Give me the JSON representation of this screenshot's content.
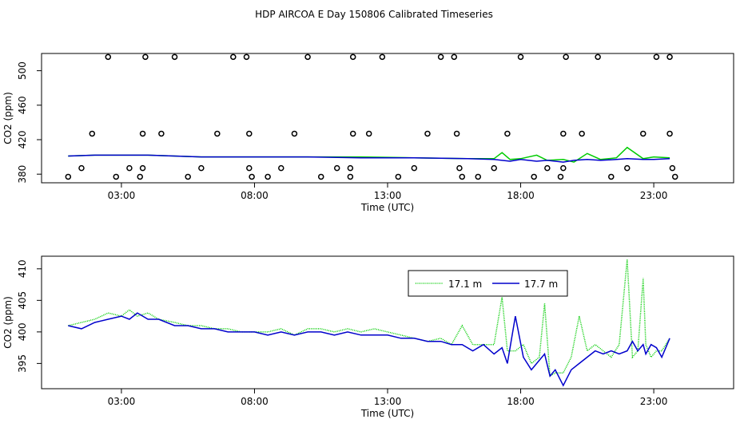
{
  "title": "HDP AIRCOA E  Day 150806  Calibrated Timeseries",
  "colors": {
    "green": "#00cc00",
    "blue": "#0000cc",
    "black": "#000000"
  },
  "chart_data": [
    {
      "type": "scatter",
      "title": "",
      "xlabel": "Time (UTC)",
      "ylabel": "CO2 (ppm)",
      "xlim": [
        0,
        26
      ],
      "ylim": [
        370,
        520
      ],
      "x_ticks": [
        3,
        8,
        13,
        18,
        23
      ],
      "x_tick_labels": [
        "03:00",
        "08:00",
        "13:00",
        "18:00",
        "23:00"
      ],
      "y_ticks": [
        380,
        420,
        460,
        500
      ],
      "y_tick_labels": [
        "380",
        "420",
        "460",
        "500"
      ],
      "calibration_points": [
        [
          1.0,
          377
        ],
        [
          1.9,
          427
        ],
        [
          1.5,
          387
        ],
        [
          2.5,
          516
        ],
        [
          2.8,
          377
        ],
        [
          3.3,
          387
        ],
        [
          3.7,
          377
        ],
        [
          3.8,
          387
        ],
        [
          3.8,
          427
        ],
        [
          3.9,
          516
        ],
        [
          4.5,
          427
        ],
        [
          5.0,
          516
        ],
        [
          5.5,
          377
        ],
        [
          6.0,
          387
        ],
        [
          6.6,
          427
        ],
        [
          7.2,
          516
        ],
        [
          7.7,
          516
        ],
        [
          7.8,
          427
        ],
        [
          7.8,
          387
        ],
        [
          7.9,
          377
        ],
        [
          8.5,
          377
        ],
        [
          9.0,
          387
        ],
        [
          9.5,
          427
        ],
        [
          10.0,
          516
        ],
        [
          10.5,
          377
        ],
        [
          11.1,
          387
        ],
        [
          11.6,
          387
        ],
        [
          11.6,
          377
        ],
        [
          11.7,
          427
        ],
        [
          11.7,
          516
        ],
        [
          12.3,
          427
        ],
        [
          12.8,
          516
        ],
        [
          13.4,
          377
        ],
        [
          14.0,
          387
        ],
        [
          14.5,
          427
        ],
        [
          15.0,
          516
        ],
        [
          15.5,
          516
        ],
        [
          15.6,
          427
        ],
        [
          15.7,
          387
        ],
        [
          15.8,
          377
        ],
        [
          16.4,
          377
        ],
        [
          17.0,
          387
        ],
        [
          17.5,
          427
        ],
        [
          18.0,
          516
        ],
        [
          18.5,
          377
        ],
        [
          19.0,
          387
        ],
        [
          19.5,
          377
        ],
        [
          19.6,
          387
        ],
        [
          19.6,
          427
        ],
        [
          19.7,
          516
        ],
        [
          20.3,
          427
        ],
        [
          20.9,
          516
        ],
        [
          21.4,
          377
        ],
        [
          22.0,
          387
        ],
        [
          22.6,
          427
        ],
        [
          23.1,
          516
        ],
        [
          23.6,
          516
        ],
        [
          23.6,
          427
        ],
        [
          23.7,
          387
        ],
        [
          23.8,
          377
        ]
      ],
      "series": [
        {
          "name": "17.1 m",
          "color": "#00cc00",
          "x": [
            1.0,
            2.0,
            3.0,
            4.0,
            5.0,
            6.0,
            8.0,
            10.0,
            12.0,
            14.0,
            16.0,
            17.0,
            17.3,
            17.6,
            18.0,
            18.6,
            19.0,
            19.6,
            20.0,
            20.5,
            21.0,
            21.6,
            22.0,
            22.6,
            23.0,
            23.6
          ],
          "y": [
            401,
            402,
            402,
            402,
            401,
            400,
            400,
            400,
            400,
            399,
            398,
            398,
            405,
            397,
            398,
            402,
            396,
            397,
            394,
            404,
            397,
            399,
            411,
            398,
            400,
            399
          ]
        },
        {
          "name": "17.7 m",
          "color": "#0000cc",
          "x": [
            1.0,
            2.0,
            3.0,
            4.0,
            5.0,
            6.0,
            8.0,
            10.0,
            12.0,
            14.0,
            16.0,
            17.0,
            17.6,
            18.0,
            18.6,
            19.0,
            19.6,
            20.0,
            20.5,
            21.0,
            21.6,
            22.0,
            22.6,
            23.0,
            23.6
          ],
          "y": [
            401,
            402,
            402,
            402,
            401,
            400,
            400,
            400,
            399,
            399,
            398,
            397,
            395,
            397,
            395,
            396,
            394,
            396,
            397,
            396,
            397,
            398,
            397,
            397,
            398
          ]
        }
      ]
    },
    {
      "type": "line",
      "title": "",
      "xlabel": "Time (UTC)",
      "ylabel": "CO2 (ppm)",
      "xlim": [
        0,
        26
      ],
      "ylim": [
        391,
        412
      ],
      "x_ticks": [
        3,
        8,
        13,
        18,
        23
      ],
      "x_tick_labels": [
        "03:00",
        "08:00",
        "13:00",
        "18:00",
        "23:00"
      ],
      "y_ticks": [
        395,
        400,
        405,
        410
      ],
      "y_tick_labels": [
        "395",
        "400",
        "405",
        "410"
      ],
      "legend": {
        "position": "top-right",
        "entries": [
          "17.1 m",
          "17.7 m"
        ]
      },
      "series": [
        {
          "name": "17.1 m",
          "color": "#00cc00",
          "x": [
            1.0,
            1.5,
            2.0,
            2.5,
            3.0,
            3.3,
            3.6,
            4.0,
            4.4,
            5.0,
            5.5,
            6.0,
            6.5,
            7.0,
            7.5,
            8.0,
            8.5,
            9.0,
            9.5,
            10.0,
            10.5,
            11.0,
            11.5,
            12.0,
            12.5,
            13.0,
            13.5,
            14.0,
            14.5,
            15.0,
            15.4,
            15.8,
            16.2,
            16.6,
            17.0,
            17.3,
            17.5,
            17.8,
            18.1,
            18.4,
            18.7,
            18.9,
            19.1,
            19.3,
            19.6,
            19.9,
            20.2,
            20.5,
            20.8,
            21.1,
            21.4,
            21.7,
            22.0,
            22.2,
            22.4,
            22.6,
            22.7,
            22.9,
            23.1,
            23.3,
            23.6
          ],
          "y": [
            401,
            401.5,
            402,
            403,
            402.5,
            403.5,
            402.5,
            403,
            402,
            401.5,
            401,
            401,
            400.5,
            400.5,
            400,
            400,
            400,
            400.5,
            399.5,
            400.5,
            400.5,
            400,
            400.5,
            400,
            400.5,
            400,
            399.5,
            399,
            398.5,
            399,
            398,
            401,
            398,
            398,
            398,
            405.5,
            397,
            397,
            398,
            395,
            396,
            404.5,
            393,
            393.5,
            393.5,
            396,
            402.5,
            397,
            398,
            397,
            396,
            398,
            411.5,
            396,
            397,
            408.5,
            398,
            396,
            397,
            397,
            399
          ]
        },
        {
          "name": "17.7 m",
          "color": "#0000cc",
          "x": [
            1.0,
            1.5,
            2.0,
            2.5,
            3.0,
            3.3,
            3.6,
            4.0,
            4.4,
            5.0,
            5.5,
            6.0,
            6.5,
            7.0,
            7.5,
            8.0,
            8.5,
            9.0,
            9.5,
            10.0,
            10.5,
            11.0,
            11.5,
            12.0,
            12.5,
            13.0,
            13.5,
            14.0,
            14.5,
            15.0,
            15.4,
            15.8,
            16.2,
            16.6,
            17.0,
            17.3,
            17.5,
            17.8,
            18.1,
            18.4,
            18.7,
            18.9,
            19.1,
            19.3,
            19.6,
            19.9,
            20.2,
            20.5,
            20.8,
            21.1,
            21.4,
            21.7,
            22.0,
            22.2,
            22.4,
            22.6,
            22.7,
            22.9,
            23.1,
            23.3,
            23.6
          ],
          "y": [
            401,
            400.5,
            401.5,
            402,
            402.5,
            402,
            403,
            402,
            402,
            401,
            401,
            400.5,
            400.5,
            400,
            400,
            400,
            399.5,
            400,
            399.5,
            400,
            400,
            399.5,
            400,
            399.5,
            399.5,
            399.5,
            399,
            399,
            398.5,
            398.5,
            398,
            398,
            397,
            398,
            396.5,
            397.5,
            395,
            402.5,
            396,
            394,
            395.5,
            396.5,
            393,
            394,
            391.5,
            394,
            395,
            396,
            397,
            396.5,
            397,
            396.5,
            397,
            398.5,
            397,
            398,
            396.5,
            398,
            397.5,
            396,
            399
          ]
        }
      ]
    }
  ]
}
